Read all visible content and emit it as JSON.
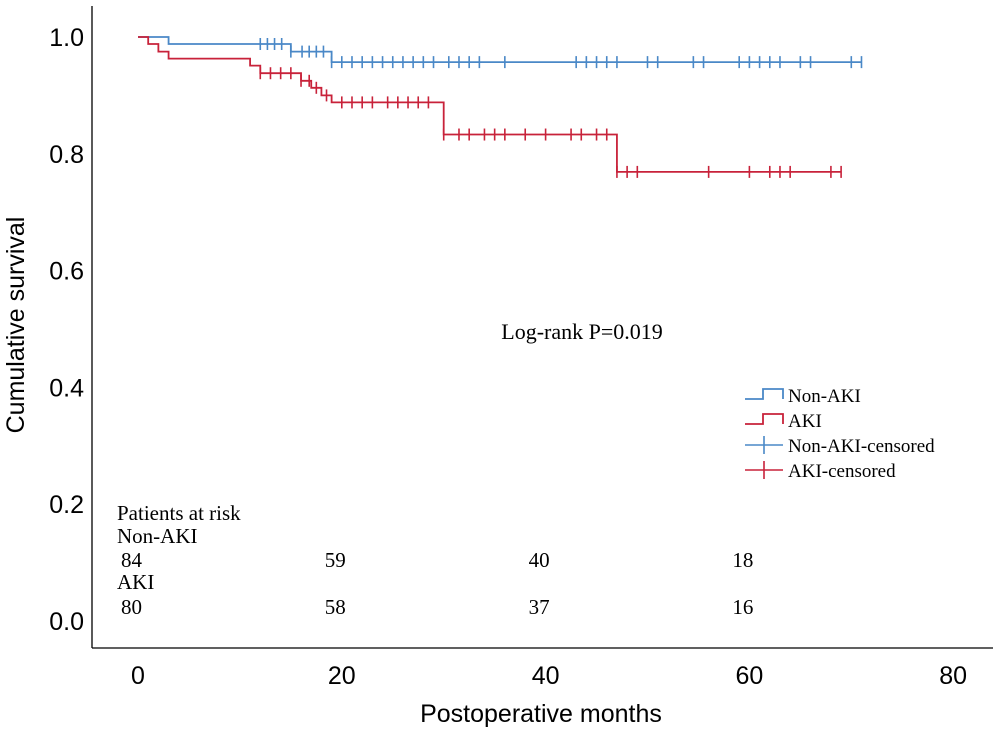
{
  "chart_data": {
    "type": "line",
    "subtype": "kaplan-meier",
    "xlabel": "Postoperative months",
    "ylabel": "Cumulative survival",
    "xlim": [
      -4,
      84
    ],
    "ylim": [
      -0.05,
      1.06
    ],
    "x_ticks": [
      0,
      20,
      40,
      60,
      80
    ],
    "y_ticks": [
      0.0,
      0.2,
      0.4,
      0.6,
      0.8,
      1.0
    ],
    "x_tick_labels": [
      "0",
      "20",
      "40",
      "60",
      "80"
    ],
    "y_tick_labels": [
      "0.0",
      "0.2",
      "0.4",
      "0.6",
      "0.8",
      "1.0"
    ],
    "grid": false,
    "legend_position": "right",
    "annotation": "Log-rank P=0.019",
    "series": [
      {
        "name": "Non-AKI",
        "color": "#4a88c7",
        "steps": [
          [
            0,
            1.0
          ],
          [
            3,
            0.988
          ],
          [
            15,
            0.975
          ],
          [
            19,
            0.957
          ],
          [
            71,
            0.957
          ]
        ],
        "censored_name": "Non-AKI-censored",
        "censored_x": [
          12,
          12.7,
          13.4,
          14.1,
          15,
          16.1,
          16.8,
          17.5,
          18.2,
          19,
          20,
          21,
          22,
          23,
          24,
          25,
          26,
          27,
          28,
          29,
          30.5,
          31.5,
          32.5,
          33.5,
          36,
          43,
          44,
          45,
          46,
          47,
          50,
          51,
          54.5,
          55.5,
          59,
          60,
          61,
          62,
          63,
          65,
          66,
          70,
          71
        ]
      },
      {
        "name": "AKI",
        "color": "#c8223a",
        "steps": [
          [
            0,
            1.0
          ],
          [
            1,
            0.988
          ],
          [
            2,
            0.975
          ],
          [
            3,
            0.963
          ],
          [
            11,
            0.951
          ],
          [
            12,
            0.938
          ],
          [
            16,
            0.925
          ],
          [
            17,
            0.913
          ],
          [
            18,
            0.9
          ],
          [
            19,
            0.888
          ],
          [
            30,
            0.833
          ],
          [
            47,
            0.769
          ],
          [
            69,
            0.769
          ]
        ],
        "censored_name": "AKI-censored",
        "censored_x": [
          12,
          13,
          14,
          15,
          16,
          16.8,
          17.5,
          18.5,
          20,
          21,
          22,
          23,
          24.5,
          25.5,
          26.5,
          27.5,
          28.5,
          30,
          31.5,
          32.5,
          34,
          35,
          36,
          38,
          40,
          42.5,
          43.5,
          45,
          46,
          47,
          48,
          49,
          56,
          60,
          62,
          63,
          64,
          68,
          69
        ]
      }
    ],
    "at_risk": {
      "title": "Patients at risk",
      "x": [
        0,
        20,
        40,
        60
      ],
      "rows": [
        {
          "label": "Non-AKI",
          "values": [
            "84",
            "59",
            "40",
            "18"
          ]
        },
        {
          "label": "AKI",
          "values": [
            "80",
            "58",
            "37",
            "16"
          ]
        }
      ]
    }
  }
}
